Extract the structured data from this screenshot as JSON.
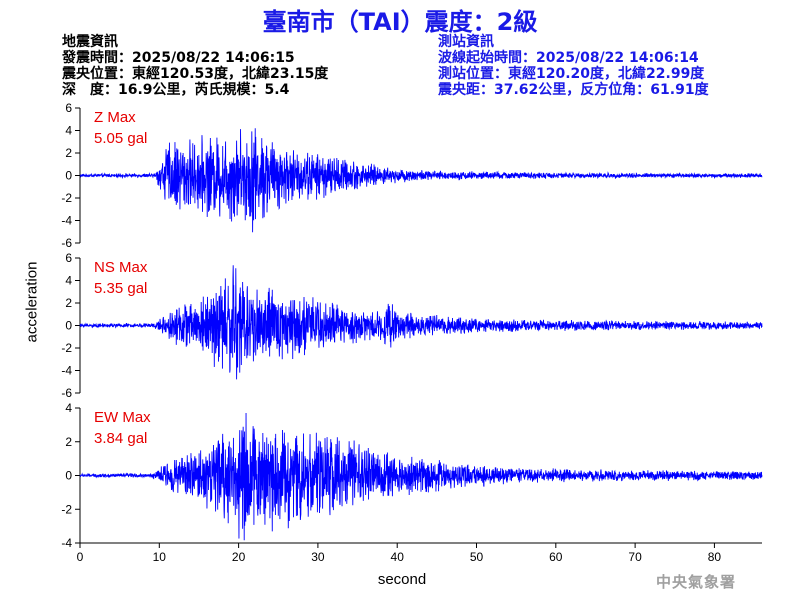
{
  "header": {
    "title_station": "臺南市（TAI）",
    "title_intensity": "震度：2級"
  },
  "earthquake_info": {
    "heading": "地震資訊",
    "origin_time": "發震時間：2025/08/22 14:06:15",
    "epicenter": "震央位置：東經120.53度，北緯23.15度",
    "depth_magnitude": "深　度：16.9公里，芮氏規模：5.4"
  },
  "station_info": {
    "heading": "測站資訊",
    "wave_start": "波線起始時間：2025/08/22 14:06:14",
    "station_location": "測站位置：東經120.20度，北緯22.99度",
    "distance_azimuth": "震央距：37.62公里，反方位角：61.91度"
  },
  "footer": {
    "credit": "中央氣象署"
  },
  "colors": {
    "trace": "#0000ff",
    "title": "#1a1ae6",
    "max_label": "#e60000",
    "credit": "#a0a0a0"
  },
  "chart_data": {
    "type": "line",
    "xlabel": "second",
    "ylabel": "acceleration",
    "xlim": [
      0,
      86
    ],
    "x_ticks": [
      0,
      10,
      20,
      30,
      40,
      50,
      60,
      70,
      80
    ],
    "panels": [
      {
        "name": "Z",
        "max_label": "Z Max",
        "max_value": "5.05 gal",
        "peak": 5.05,
        "ylim": [
          -6,
          6
        ],
        "y_ticks": [
          6,
          4,
          2,
          0,
          -2,
          -4,
          -6
        ],
        "envelope": [
          [
            0,
            0.12
          ],
          [
            9.5,
            0.15
          ],
          [
            10,
            1.0
          ],
          [
            11,
            2.4
          ],
          [
            12,
            2.8
          ],
          [
            14,
            2.6
          ],
          [
            17,
            3.0
          ],
          [
            19,
            3.4
          ],
          [
            21,
            3.6
          ],
          [
            22,
            4.0
          ],
          [
            24,
            2.9
          ],
          [
            26,
            2.2
          ],
          [
            28,
            1.8
          ],
          [
            30,
            1.7
          ],
          [
            32,
            1.5
          ],
          [
            34,
            1.2
          ],
          [
            36,
            0.9
          ],
          [
            38,
            0.7
          ],
          [
            40,
            0.5
          ],
          [
            45,
            0.35
          ],
          [
            50,
            0.3
          ],
          [
            60,
            0.22
          ],
          [
            70,
            0.18
          ],
          [
            86,
            0.15
          ]
        ]
      },
      {
        "name": "NS",
        "max_label": "NS Max",
        "max_value": "5.35 gal",
        "peak": 5.35,
        "ylim": [
          -6,
          6
        ],
        "y_ticks": [
          6,
          4,
          2,
          0,
          -2,
          -4,
          -6
        ],
        "envelope": [
          [
            0,
            0.12
          ],
          [
            9,
            0.15
          ],
          [
            10,
            0.4
          ],
          [
            11,
            0.8
          ],
          [
            12,
            1.2
          ],
          [
            14,
            1.6
          ],
          [
            16,
            2.2
          ],
          [
            18,
            3.2
          ],
          [
            19,
            4.2
          ],
          [
            20,
            4.3
          ],
          [
            21,
            3.4
          ],
          [
            22,
            2.6
          ],
          [
            24,
            2.4
          ],
          [
            26,
            2.2
          ],
          [
            28,
            2.0
          ],
          [
            30,
            1.8
          ],
          [
            32,
            1.4
          ],
          [
            34,
            1.2
          ],
          [
            36,
            1.1
          ],
          [
            38,
            1.0
          ],
          [
            39,
            1.9
          ],
          [
            40,
            0.9
          ],
          [
            44,
            0.7
          ],
          [
            48,
            0.55
          ],
          [
            55,
            0.4
          ],
          [
            60,
            0.35
          ],
          [
            70,
            0.3
          ],
          [
            86,
            0.25
          ]
        ]
      },
      {
        "name": "EW",
        "max_label": "EW Max",
        "max_value": "3.84 gal",
        "peak": 3.84,
        "ylim": [
          -4,
          4
        ],
        "y_ticks": [
          4,
          2,
          0,
          -2,
          -4
        ],
        "envelope": [
          [
            0,
            0.08
          ],
          [
            9,
            0.1
          ],
          [
            10,
            0.3
          ],
          [
            11,
            0.7
          ],
          [
            13,
            0.9
          ],
          [
            15,
            1.3
          ],
          [
            17,
            1.8
          ],
          [
            18,
            2.2
          ],
          [
            19,
            2.6
          ],
          [
            20,
            3.2
          ],
          [
            21,
            3.0
          ],
          [
            22,
            2.4
          ],
          [
            24,
            2.4
          ],
          [
            26,
            2.6
          ],
          [
            28,
            2.2
          ],
          [
            30,
            2.0
          ],
          [
            32,
            1.8
          ],
          [
            34,
            1.6
          ],
          [
            36,
            1.4
          ],
          [
            38,
            1.1
          ],
          [
            40,
            1.0
          ],
          [
            42,
            0.9
          ],
          [
            45,
            0.8
          ],
          [
            48,
            0.55
          ],
          [
            52,
            0.45
          ],
          [
            56,
            0.35
          ],
          [
            62,
            0.28
          ],
          [
            70,
            0.25
          ],
          [
            86,
            0.2
          ]
        ]
      }
    ]
  }
}
